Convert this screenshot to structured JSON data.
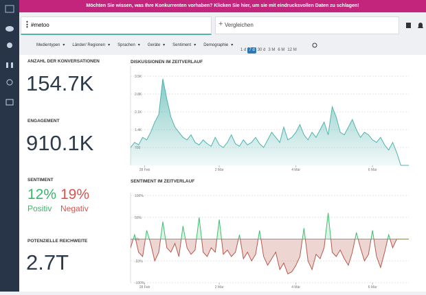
{
  "banner": "Möchten Sie wissen, was Ihre Konkurrenten vorhaben? Klicken Sie hier, um sie mit eindrucksvollen Daten zu schlagen!",
  "search": {
    "query": "#metoo",
    "compare": "Vergleichen"
  },
  "filters": [
    "Medientypen",
    "Länder/ Regionen",
    "Sprachen",
    "Geräte",
    "Sentiment",
    "Demographie"
  ],
  "periods": [
    "1 d",
    "7 d",
    "30 d",
    "3 M",
    "6 M",
    "12 M"
  ],
  "active_period": 1,
  "kpis": {
    "conversations": {
      "label": "ANZAHL DER KONVERSATIONEN",
      "value": "154.7K"
    },
    "engagement": {
      "label": "ENGAGEMENT",
      "value": "910.1K"
    },
    "sentiment": {
      "label": "SENTIMENT",
      "positive": "12%",
      "positive_label": "Positiv",
      "negative": "19%",
      "negative_label": "Negativ"
    },
    "reach": {
      "label": "POTENZIELLE REICHWEITE",
      "value": "2.7T"
    }
  },
  "chart_data": [
    {
      "type": "area",
      "title": "DISKUSSIONEN IM ZEITVERLAUF",
      "color": "#4fb3ae",
      "grid": true,
      "xlim": [
        0,
        69
      ],
      "xticks": [
        {
          "value": 3.5,
          "label": "28 Feb"
        },
        {
          "value": 22,
          "label": "2 Mär"
        },
        {
          "value": 41,
          "label": "4 Mär"
        },
        {
          "value": 60,
          "label": "6 Mär"
        }
      ],
      "ylim": [
        0,
        3800
      ],
      "yticks": [
        700,
        {
          "value": 1400,
          "label": "1.4K"
        },
        {
          "value": 2100,
          "label": "2.1K"
        },
        {
          "value": 2800,
          "label": "2.8K"
        },
        {
          "value": 3500,
          "label": "3.5K"
        }
      ],
      "values": [
        700,
        900,
        800,
        1100,
        1000,
        1300,
        1700,
        2000,
        3400,
        2600,
        1900,
        1500,
        1300,
        1100,
        1000,
        1200,
        900,
        800,
        1000,
        850,
        750,
        1100,
        800,
        700,
        900,
        1200,
        850,
        750,
        1000,
        800,
        900,
        1100,
        850,
        700,
        1000,
        1300,
        1100,
        900,
        1500,
        1000,
        1100,
        1300,
        1600,
        1200,
        1000,
        1300,
        1100,
        1400,
        1700,
        1200,
        2300,
        1900,
        1300,
        1200,
        1500,
        1800,
        1400,
        1100,
        1300,
        1200,
        1000,
        900,
        1100,
        800,
        600,
        900,
        500,
        0,
        0,
        0
      ]
    },
    {
      "type": "sentiment",
      "title": "SENTIMENT IM ZEITVERLAUF",
      "positive_color": "#3fbf6f",
      "negative_color": "#b8584c",
      "grid": true,
      "xlim": [
        0,
        69
      ],
      "xticks": [
        {
          "value": 3.5,
          "label": "28 Feb"
        },
        {
          "value": 22,
          "label": "2 Mär"
        },
        {
          "value": 41,
          "label": "4 Mär"
        },
        {
          "value": 60,
          "label": "6 Mär"
        }
      ],
      "ylim": [
        -100,
        100
      ],
      "yticks": [
        {
          "value": -100,
          "label": "-100%"
        },
        {
          "value": -50,
          "label": "-50%"
        },
        {
          "value": 0,
          "label": "0%"
        },
        {
          "value": 50,
          "label": "50%"
        },
        {
          "value": 100,
          "label": "100%"
        }
      ],
      "values": [
        -20,
        10,
        -30,
        -40,
        20,
        -10,
        -50,
        -30,
        40,
        -20,
        -30,
        -10,
        -40,
        30,
        -20,
        -35,
        -25,
        50,
        -30,
        -40,
        -20,
        -30,
        45,
        -35,
        -25,
        -40,
        -30,
        10,
        -45,
        -30,
        -50,
        -35,
        20,
        -40,
        -60,
        -45,
        -30,
        -70,
        -55,
        -80,
        -75,
        -60,
        -40,
        25,
        -50,
        -70,
        -35,
        -45,
        -20,
        60,
        -30,
        -40,
        -25,
        -45,
        -60,
        -30,
        15,
        -20,
        -50,
        -35,
        20,
        -40,
        -65,
        -30,
        10,
        -20,
        0,
        0,
        0,
        0
      ]
    }
  ]
}
